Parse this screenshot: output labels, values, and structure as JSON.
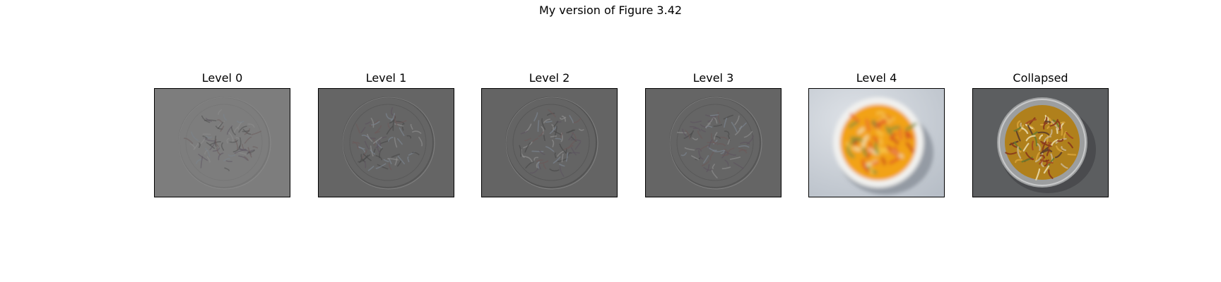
{
  "figure": {
    "suptitle": "My version of Figure 3.42"
  },
  "panels": [
    {
      "title": "Level 0",
      "style": "detail",
      "background": "#7d7d7d",
      "edge": "#6f6f6f",
      "contrast": 0.25
    },
    {
      "title": "Level 1",
      "style": "detail",
      "background": "#656565",
      "edge": "#4e4e4e",
      "contrast": 0.55
    },
    {
      "title": "Level 2",
      "style": "detail",
      "background": "#646464",
      "edge": "#4c4c4c",
      "contrast": 0.6
    },
    {
      "title": "Level 3",
      "style": "detail",
      "background": "#656565",
      "edge": "#4f4f4f",
      "contrast": 0.55
    },
    {
      "title": "Level 4",
      "style": "blurred-photo",
      "background": "#c9cfd6",
      "edge": "#7a7f86",
      "contrast": 1.0
    },
    {
      "title": "Collapsed",
      "style": "photo",
      "background": "#5c5e60",
      "edge": "#4a4c4e",
      "contrast": 1.0
    }
  ]
}
